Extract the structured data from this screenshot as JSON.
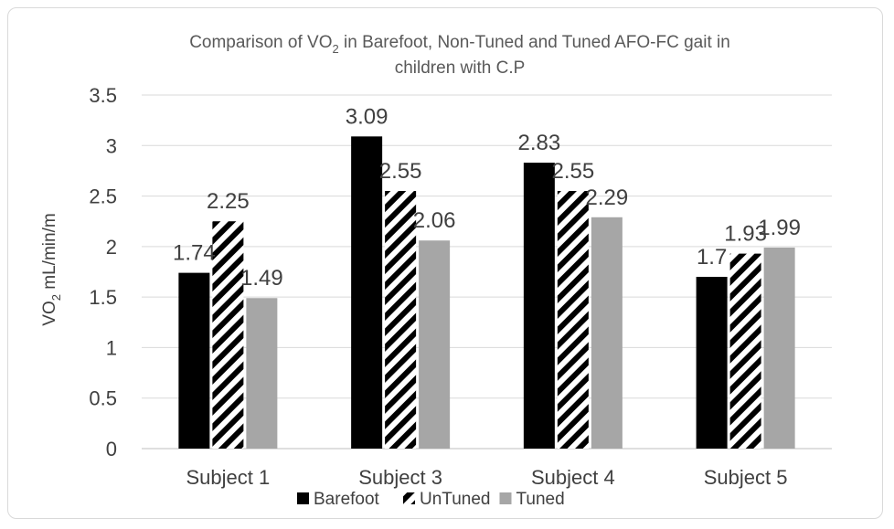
{
  "chart_data": {
    "type": "bar",
    "title_main": "Comparison of VO",
    "title_sub": "2",
    "title_rest": " in Barefoot, Non-Tuned and Tuned AFO-FC gait in",
    "title_line2": "children with C.P",
    "ylabel_main": "VO",
    "ylabel_sub": "2",
    "ylabel_rest": " mL/min/m",
    "xlabel": "",
    "ylim": [
      0,
      3.5
    ],
    "yticks": [
      "0",
      "0.5",
      "1",
      "1.5",
      "2",
      "2.5",
      "3",
      "3.5"
    ],
    "categories": [
      "Subject 1",
      "Subject 3",
      "Subject 4",
      "Subject 5"
    ],
    "series": [
      {
        "name": "Barefoot",
        "values": [
          1.74,
          3.09,
          2.83,
          1.7
        ],
        "labels": [
          "1.74",
          "3.09",
          "2.83",
          "1.7"
        ],
        "color": "#000000",
        "pattern": "solid"
      },
      {
        "name": "UnTuned",
        "values": [
          2.25,
          2.55,
          2.55,
          1.93
        ],
        "labels": [
          "2.25",
          "2.55",
          "2.55",
          "1.93"
        ],
        "color": "#000000",
        "pattern": "wide-diagonal"
      },
      {
        "name": "Tuned",
        "values": [
          1.49,
          2.06,
          2.29,
          1.99
        ],
        "labels": [
          "1.49",
          "2.06",
          "2.29",
          "1.99"
        ],
        "color": "#a6a6a6",
        "pattern": "solid"
      }
    ],
    "grid": true,
    "legend_position": "bottom"
  }
}
